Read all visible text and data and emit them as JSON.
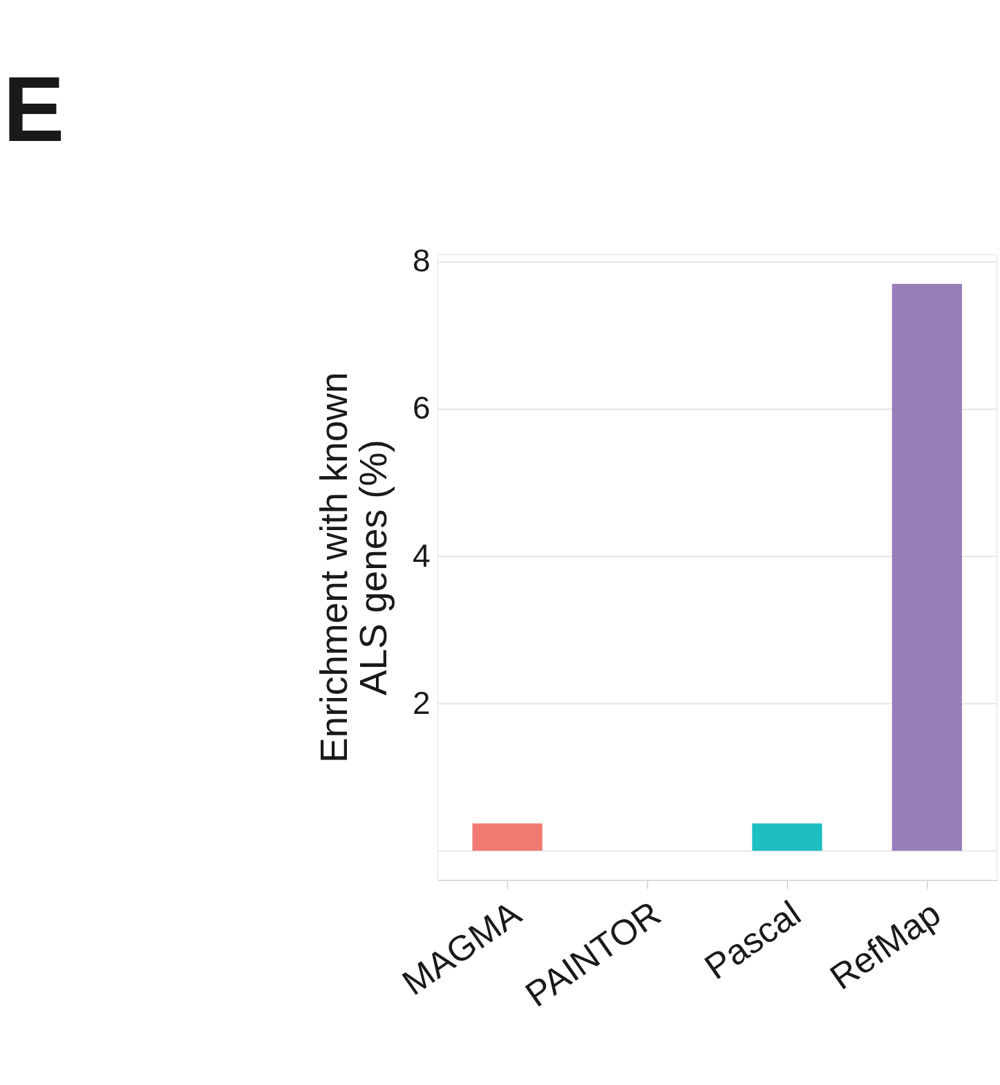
{
  "chart_data": {
    "type": "bar",
    "title": "E",
    "ylabel": "Enrichment with known\nALS genes (%)",
    "categories": [
      "MAGMA",
      "PAINTOR",
      "Pascal",
      "RefMap"
    ],
    "values": [
      0.37,
      0,
      0.37,
      7.7
    ],
    "colors": [
      "#f17a72",
      "#7cae00",
      "#1ebfc0",
      "#977dba"
    ],
    "ylim": [
      -0.4,
      8.1
    ],
    "yticks": [
      {
        "value": 0,
        "label": null
      },
      2,
      4,
      6,
      8
    ],
    "grid": "y",
    "legend": false
  }
}
